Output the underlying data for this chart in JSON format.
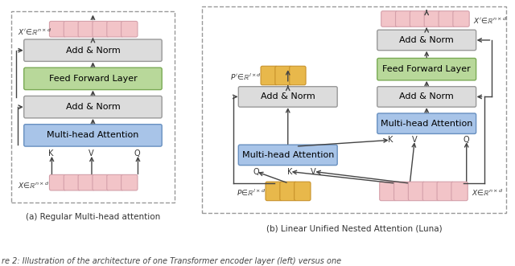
{
  "bg_color": "#ffffff",
  "caption_a": "(a) Regular Multi-head attention",
  "caption_b": "(b) Linear Unified Nested Attention (Luna)",
  "bottom_text": "re 2: Illustration of the architecture of one Transformer encoder layer (left) versus one",
  "colors": {
    "pink": "#D4A0AA",
    "pink_fill": "#F2C4C8",
    "orange": "#C8922A",
    "orange_fill": "#E8B84B",
    "green_fill": "#B8D89A",
    "green_edge": "#7AAA55",
    "blue_fill": "#A8C4E8",
    "blue_edge": "#6890C0",
    "gray_fill": "#DCDCDC",
    "gray_edge": "#999999",
    "arrow": "#444444",
    "dashed": "#999999"
  }
}
